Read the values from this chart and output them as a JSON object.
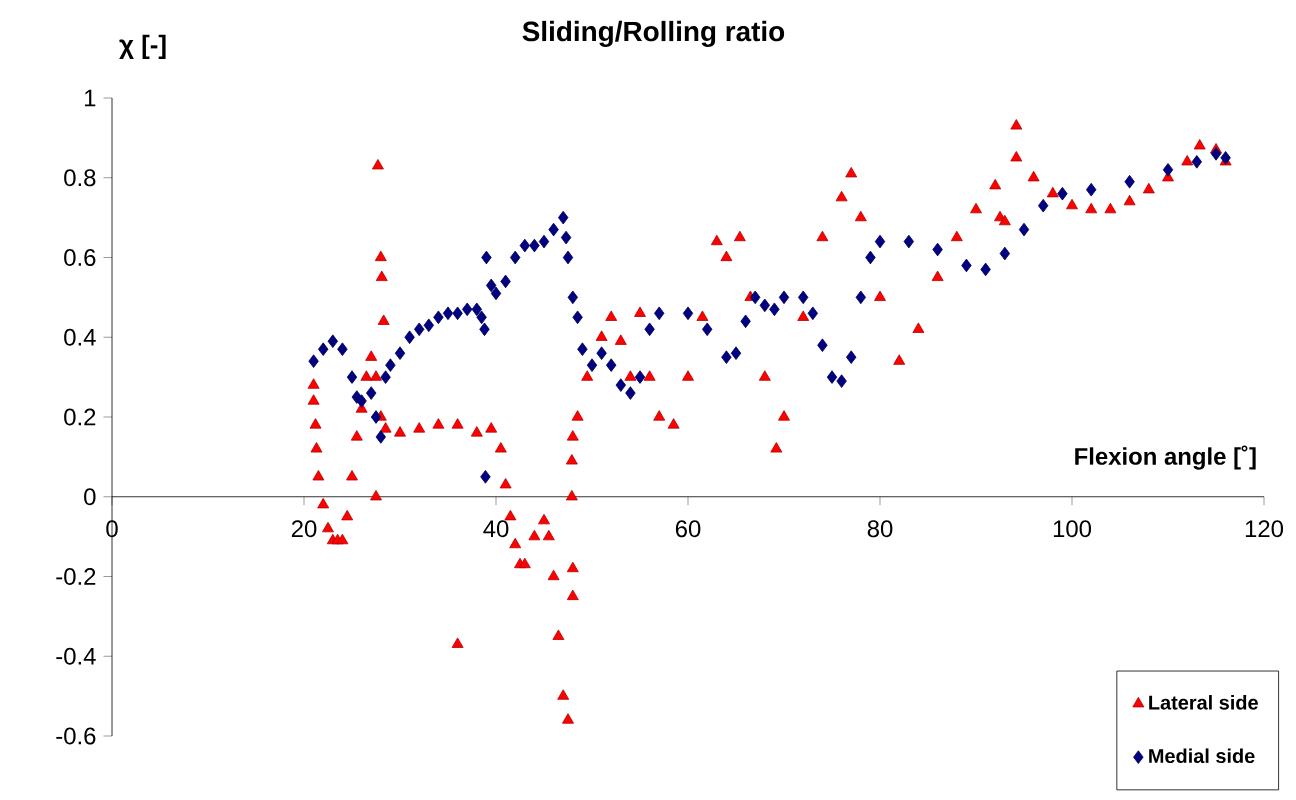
{
  "chart_data": {
    "type": "scatter",
    "title": "Sliding/Rolling ratio",
    "xlabel": "Flexion angle [˚]",
    "ylabel": "χ [-]",
    "xlim": [
      0,
      120
    ],
    "ylim": [
      -0.6,
      1
    ],
    "xticks": [
      0,
      20,
      40,
      60,
      80,
      100,
      120
    ],
    "yticks": [
      -0.6,
      -0.4,
      -0.2,
      0,
      0.2,
      0.4,
      0.6,
      0.8,
      1
    ],
    "grid": false,
    "legend": "bottom right",
    "series": [
      {
        "name": "Lateral side",
        "color": "#ff0000",
        "marker": "triangle",
        "x": [
          21,
          21,
          21.2,
          21.3,
          21.5,
          22,
          22.5,
          23,
          23.5,
          24,
          24.5,
          25,
          25.5,
          26,
          26.5,
          27,
          27.5,
          27.5,
          27.7,
          28,
          28.1,
          28.3,
          28,
          28.5,
          30,
          32,
          34,
          36,
          36,
          38,
          39.5,
          40.5,
          41,
          41.5,
          42,
          42.5,
          43,
          44,
          45,
          45.5,
          46,
          46.5,
          47,
          47.5,
          47.9,
          47.9,
          48,
          48,
          48,
          48.5,
          49.5,
          51,
          52,
          53,
          54,
          55,
          56,
          57,
          58.5,
          60,
          61.5,
          63,
          64,
          65.4,
          66.5,
          68,
          69.2,
          70,
          72,
          74,
          76,
          77,
          78,
          80,
          82,
          84,
          86,
          88,
          90,
          92,
          92.5,
          93,
          94.2,
          94.2,
          96,
          98,
          100,
          102,
          104,
          106,
          108,
          110,
          112,
          113.3,
          115,
          116
        ],
        "values": [
          0.28,
          0.24,
          0.18,
          0.12,
          0.05,
          -0.02,
          -0.08,
          -0.11,
          -0.11,
          -0.11,
          -0.05,
          0.05,
          0.15,
          0.22,
          0.3,
          0.35,
          0.3,
          0,
          0.83,
          0.6,
          0.55,
          0.44,
          0.2,
          0.17,
          0.16,
          0.17,
          0.18,
          0.18,
          -0.37,
          0.16,
          0.17,
          0.12,
          0.03,
          -0.05,
          -0.12,
          -0.17,
          -0.17,
          -0.1,
          -0.06,
          -0.1,
          -0.2,
          -0.35,
          -0.5,
          -0.56,
          0.09,
          0,
          -0.18,
          -0.25,
          0.15,
          0.2,
          0.3,
          0.4,
          0.45,
          0.39,
          0.3,
          0.46,
          0.3,
          0.2,
          0.18,
          0.3,
          0.45,
          0.64,
          0.6,
          0.65,
          0.5,
          0.3,
          0.12,
          0.2,
          0.45,
          0.65,
          0.75,
          0.81,
          0.7,
          0.5,
          0.34,
          0.42,
          0.55,
          0.65,
          0.72,
          0.78,
          0.7,
          0.69,
          0.93,
          0.85,
          0.8,
          0.76,
          0.73,
          0.72,
          0.72,
          0.74,
          0.77,
          0.8,
          0.84,
          0.88,
          0.87,
          0.84
        ]
      },
      {
        "name": "Medial side",
        "color": "#000080",
        "marker": "diamond",
        "x": [
          21,
          22,
          23,
          24,
          25,
          25.5,
          26,
          27,
          27.5,
          28,
          28.5,
          29,
          30,
          31,
          32,
          33,
          34,
          35,
          36,
          37,
          38,
          38.5,
          38.8,
          39,
          38.9,
          39.5,
          40,
          41,
          42,
          43,
          44,
          45,
          46,
          47,
          47.3,
          47.5,
          48,
          48.5,
          49,
          50,
          51,
          52,
          53,
          54,
          55,
          56,
          57,
          60,
          62,
          64,
          65,
          66,
          67,
          68,
          69,
          70,
          72,
          73,
          74,
          75,
          76,
          77,
          78,
          79,
          80,
          83,
          86,
          89,
          91,
          93,
          95,
          97,
          99,
          102,
          106,
          110,
          113,
          115,
          116
        ],
        "values": [
          0.34,
          0.37,
          0.39,
          0.37,
          0.3,
          0.25,
          0.24,
          0.26,
          0.2,
          0.15,
          0.3,
          0.33,
          0.36,
          0.4,
          0.42,
          0.43,
          0.45,
          0.46,
          0.46,
          0.47,
          0.47,
          0.45,
          0.42,
          0.6,
          0.05,
          0.53,
          0.51,
          0.54,
          0.6,
          0.63,
          0.63,
          0.64,
          0.67,
          0.7,
          0.65,
          0.6,
          0.5,
          0.45,
          0.37,
          0.33,
          0.36,
          0.33,
          0.28,
          0.26,
          0.3,
          0.42,
          0.46,
          0.46,
          0.42,
          0.35,
          0.36,
          0.44,
          0.5,
          0.48,
          0.47,
          0.5,
          0.5,
          0.46,
          0.38,
          0.3,
          0.29,
          0.35,
          0.5,
          0.6,
          0.64,
          0.64,
          0.62,
          0.58,
          0.57,
          0.61,
          0.67,
          0.73,
          0.76,
          0.77,
          0.79,
          0.82,
          0.84,
          0.86,
          0.85
        ]
      }
    ]
  }
}
